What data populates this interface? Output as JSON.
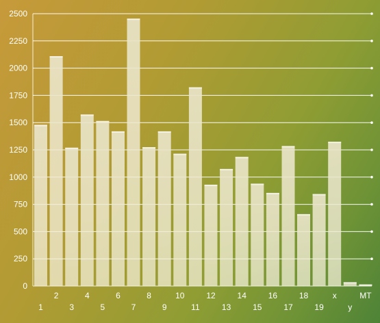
{
  "chart_data": {
    "type": "bar",
    "categories": [
      "1",
      "2",
      "3",
      "4",
      "5",
      "6",
      "7",
      "8",
      "9",
      "10",
      "11",
      "12",
      "13",
      "14",
      "15",
      "16",
      "17",
      "18",
      "19",
      "x",
      "y",
      "MT"
    ],
    "values": [
      1480,
      2110,
      1270,
      1575,
      1515,
      1420,
      2455,
      1275,
      1420,
      1215,
      1825,
      930,
      1075,
      1185,
      940,
      855,
      1285,
      660,
      845,
      1325,
      35,
      15
    ],
    "ylim": [
      0,
      2500
    ],
    "yticks": [
      0,
      250,
      500,
      750,
      1000,
      1250,
      1500,
      1750,
      2000,
      2250,
      2500
    ],
    "grid": true,
    "title": "",
    "xlabel": "",
    "ylabel": "",
    "colors": {
      "bar_top": "#e9e4c8",
      "bar_bottom": "#f6f1dc",
      "gridline": "#ffffff",
      "text": "#ffffff"
    }
  }
}
